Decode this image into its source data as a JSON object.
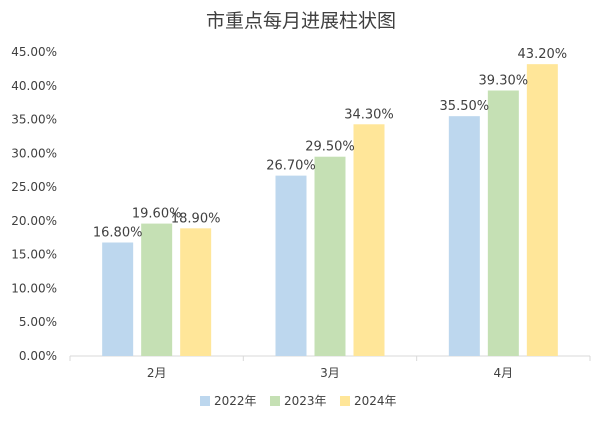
{
  "chart_data": {
    "type": "bar",
    "title": "市重点每月进展柱状图",
    "categories": [
      "2月",
      "3月",
      "4月"
    ],
    "series": [
      {
        "name": "2022年",
        "values": [
          16.8,
          26.7,
          35.5
        ],
        "labels": [
          "16.80%",
          "26.70%",
          "35.50%"
        ],
        "color": "#bdd7ee"
      },
      {
        "name": "2023年",
        "values": [
          19.6,
          29.5,
          39.3
        ],
        "labels": [
          "19.60%",
          "29.50%",
          "39.30%"
        ],
        "color": "#c5e0b4"
      },
      {
        "name": "2024年",
        "values": [
          18.9,
          34.3,
          43.2
        ],
        "labels": [
          "18.90%",
          "34.30%",
          "43.20%"
        ],
        "color": "#ffe699"
      }
    ],
    "y_ticks": [
      "0.00%",
      "5.00%",
      "10.00%",
      "15.00%",
      "20.00%",
      "25.00%",
      "30.00%",
      "35.00%",
      "40.00%",
      "45.00%"
    ],
    "ylim": [
      0,
      45
    ],
    "xlabel": "",
    "ylabel": "",
    "grid": false,
    "legend_position": "bottom"
  }
}
